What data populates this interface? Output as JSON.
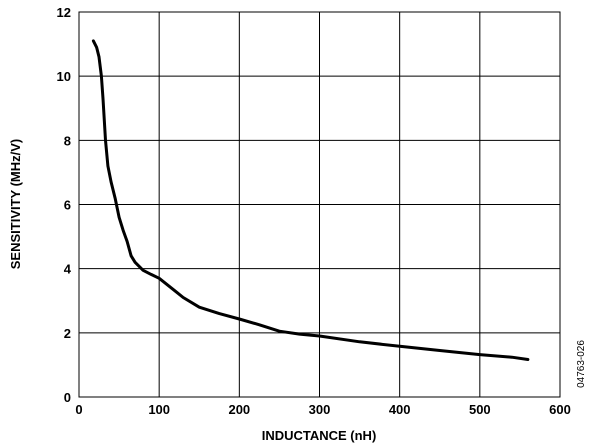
{
  "chart_data": {
    "type": "line",
    "xlabel": "INDUCTANCE (nH)",
    "ylabel": "SENSITIVITY (MHz/V)",
    "xlim": [
      0,
      600
    ],
    "ylim": [
      0,
      12
    ],
    "x_ticks": [
      0,
      100,
      200,
      300,
      400,
      500,
      600
    ],
    "y_ticks": [
      0,
      2,
      4,
      6,
      8,
      10,
      12
    ],
    "grid": true,
    "legend": "none",
    "series": [
      {
        "color": "#000000",
        "x": [
          18,
          22,
          25,
          28,
          30,
          33,
          36,
          40,
          45,
          50,
          55,
          60,
          65,
          70,
          80,
          90,
          100,
          110,
          120,
          130,
          150,
          175,
          200,
          225,
          250,
          275,
          300,
          350,
          400,
          450,
          500,
          540,
          560
        ],
        "y": [
          11.1,
          10.9,
          10.6,
          10.0,
          9.3,
          8.0,
          7.2,
          6.7,
          6.2,
          5.6,
          5.2,
          4.85,
          4.4,
          4.2,
          3.95,
          3.82,
          3.7,
          3.5,
          3.3,
          3.1,
          2.8,
          2.6,
          2.43,
          2.25,
          2.05,
          1.96,
          1.9,
          1.72,
          1.58,
          1.45,
          1.32,
          1.24,
          1.17
        ]
      }
    ]
  },
  "figure_code": "04763-026"
}
